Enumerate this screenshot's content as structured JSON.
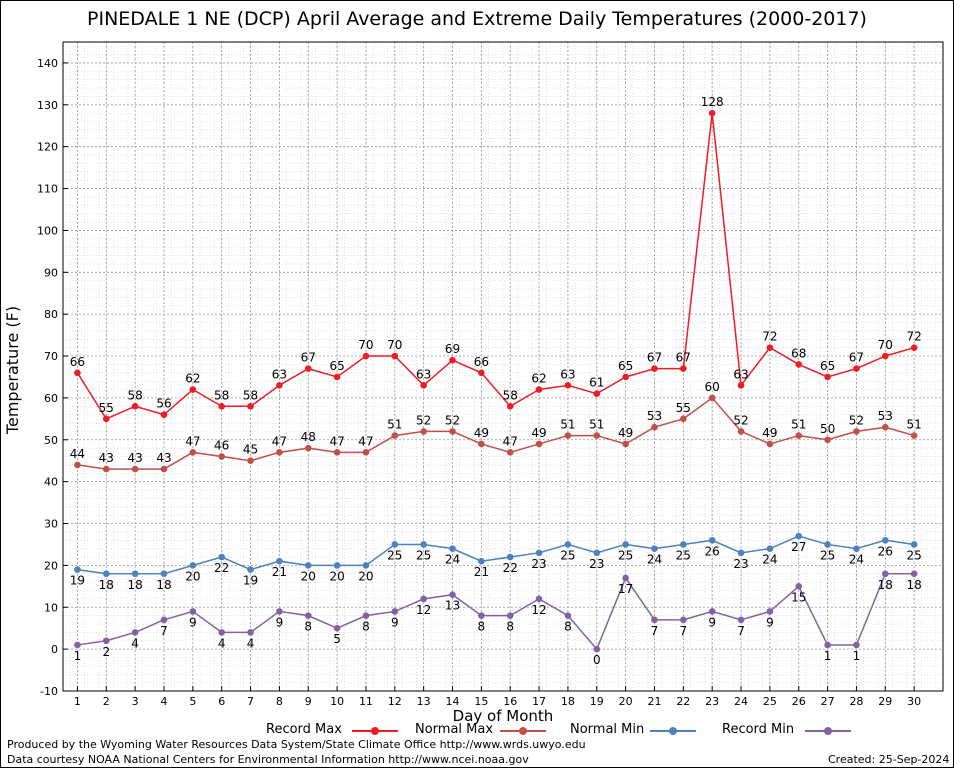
{
  "chart_data": {
    "type": "line",
    "title": "PINEDALE 1 NE (DCP) April Average and Extreme Daily Temperatures (2000-2017)",
    "xlabel": "Day of Month",
    "ylabel": "Temperature (F)",
    "ylim": [
      -10,
      145
    ],
    "y_ticks": [
      -10,
      0,
      10,
      20,
      30,
      40,
      50,
      60,
      70,
      80,
      90,
      100,
      110,
      120,
      130,
      140
    ],
    "x": [
      1,
      2,
      3,
      4,
      5,
      6,
      7,
      8,
      9,
      10,
      11,
      12,
      13,
      14,
      15,
      16,
      17,
      18,
      19,
      20,
      21,
      22,
      23,
      24,
      25,
      26,
      27,
      28,
      29,
      30
    ],
    "grid": true,
    "legend_position": "bottom",
    "series": [
      {
        "name": "Record Max",
        "color": "#ee1c24",
        "label_side": "above",
        "values": [
          66,
          55,
          58,
          56,
          62,
          58,
          58,
          63,
          67,
          65,
          70,
          70,
          63,
          69,
          66,
          58,
          62,
          63,
          61,
          65,
          67,
          67,
          128,
          63,
          72,
          68,
          65,
          67,
          70,
          72
        ]
      },
      {
        "name": "Normal Max",
        "color": "#c0504d",
        "label_side": "above",
        "values": [
          44,
          43,
          43,
          43,
          47,
          46,
          45,
          47,
          48,
          47,
          47,
          51,
          52,
          52,
          49,
          47,
          49,
          51,
          51,
          49,
          53,
          55,
          60,
          52,
          49,
          51,
          50,
          52,
          53,
          51
        ]
      },
      {
        "name": "Normal Min",
        "color": "#4f81bd",
        "label_side": "below",
        "values": [
          19,
          18,
          18,
          18,
          20,
          22,
          19,
          21,
          20,
          20,
          20,
          25,
          25,
          24,
          21,
          22,
          23,
          25,
          23,
          25,
          24,
          25,
          26,
          23,
          24,
          27,
          25,
          24,
          26,
          25
        ]
      },
      {
        "name": "Record Min",
        "color": "#8064a2",
        "label_side": "below",
        "values": [
          1,
          2,
          4,
          7,
          9,
          4,
          4,
          9,
          8,
          5,
          8,
          9,
          12,
          13,
          8,
          8,
          12,
          8,
          0,
          17,
          7,
          7,
          9,
          7,
          9,
          15,
          1,
          1,
          18,
          18
        ]
      }
    ]
  },
  "footer": {
    "produced_by": "Produced by the Wyoming Water Resources Data System/State Climate Office http://www.wrds.uwyo.edu",
    "data_courtesy": "Data courtesy NOAA National Centers for Environmental Information http://www.ncei.noaa.gov",
    "created": "Created:  25-Sep-2024"
  }
}
